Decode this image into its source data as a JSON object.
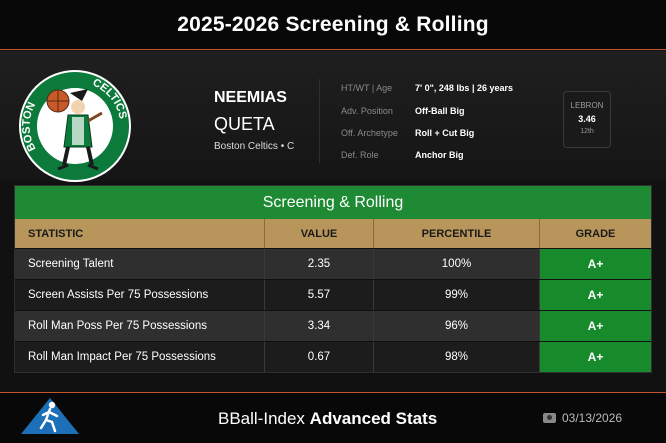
{
  "header": {
    "title": "2025-2026 Screening & Rolling"
  },
  "player": {
    "first_name": "NEEMIAS",
    "last_name": "QUETA",
    "team_pos": "Boston Celtics • C",
    "logo_text": "BOSTON CELTICS",
    "logo_colors": {
      "green": "#0b7a3b",
      "white": "#ffffff",
      "brown": "#7a4a22",
      "gold": "#c8a85a"
    }
  },
  "info": [
    {
      "key": "HT/WT | Age",
      "value": "7' 0\", 248 lbs | 26 years"
    },
    {
      "key": "Adv. Position",
      "value": "Off-Ball Big"
    },
    {
      "key": "Off. Archetype",
      "value": "Roll + Cut Big"
    },
    {
      "key": "Def. Role",
      "value": "Anchor Big"
    }
  ],
  "lebron": {
    "label": "LEBRON",
    "value": "3.46",
    "rank": "12th"
  },
  "table": {
    "title": "Screening & Rolling",
    "columns": [
      "STATISTIC",
      "VALUE",
      "PERCENTILE",
      "GRADE"
    ],
    "rows": [
      {
        "stat": "Screening Talent",
        "value": "2.35",
        "percentile": "100%",
        "grade": "A+"
      },
      {
        "stat": "Screen Assists Per 75 Possessions",
        "value": "5.57",
        "percentile": "99%",
        "grade": "A+"
      },
      {
        "stat": "Roll Man Poss Per 75 Possessions",
        "value": "3.34",
        "percentile": "96%",
        "grade": "A+"
      },
      {
        "stat": "Roll Man Impact Per 75 Possessions",
        "value": "0.67",
        "percentile": "98%",
        "grade": "A+"
      }
    ]
  },
  "footer": {
    "brand_regular": "BBall-Index",
    "brand_bold": "Advanced Stats",
    "date": "03/13/2026",
    "date_icon": "camera-icon"
  },
  "colors": {
    "accent": "#c0562a",
    "green": "#1e8a33",
    "gold": "#b8955a"
  }
}
